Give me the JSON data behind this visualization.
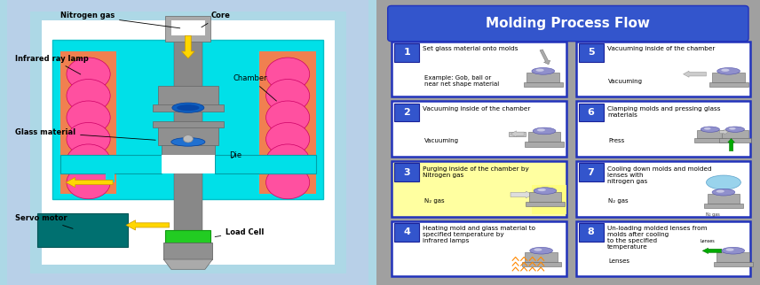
{
  "title_right": "Molding Process Flow",
  "step_texts": [
    [
      "1",
      "Set glass material onto molds",
      "Example: Gob, ball or\nnear net shape material",
      false
    ],
    [
      "2",
      "Vacuuming inside of the chamber",
      "Vacuuming",
      false
    ],
    [
      "3",
      "Purging inside of the chamber by\nNitrogen gas",
      "N₂ gas",
      true
    ],
    [
      "4",
      "Heating mold and glass material to\nspecified temperature by\ninfrared lamps",
      "",
      false
    ],
    [
      "5",
      "Vacuuming inside of the chamber",
      "Vacuuming",
      false
    ],
    [
      "6",
      "Clamping molds and pressing glass\nmaterials",
      "Press",
      false
    ],
    [
      "7",
      "Cooling down molds and molded\nlenses with\nnitrogen gas",
      "N₂ gas",
      false
    ],
    [
      "8",
      "Un-loading molded lenses from\nmolds after cooling\nto the specified\ntemperature",
      "Lenses",
      false
    ]
  ],
  "left_bg_outer": "#add8e6",
  "left_bg_white": "#ffffff",
  "left_bg_med": "#b0c8e8",
  "left_cyan": "#00e0e8",
  "left_orange": "#f08050",
  "left_pink": "#ff50a0",
  "left_gray_shaft": "#888888",
  "left_gray_die": "#909090",
  "left_blue_glass": "#1060c0",
  "left_teal": "#007070",
  "left_green": "#22cc22",
  "left_yellow_arrow": "#ffd700",
  "right_bg": "#a8a8a8",
  "right_title_bg": "#3355cc",
  "right_box_border": "#2233bb",
  "right_num_bg": "#3355cc",
  "right_highlight": "#ffffa0"
}
